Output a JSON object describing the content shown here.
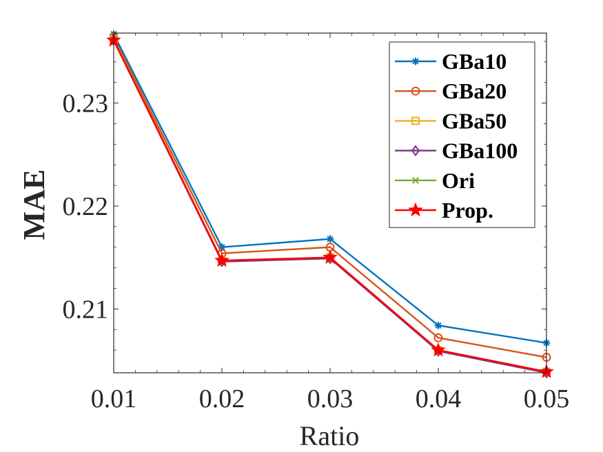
{
  "chart_data": {
    "type": "line",
    "xlabel": "Ratio",
    "ylabel": "MAE",
    "x": [
      0.01,
      0.02,
      0.03,
      0.04,
      0.05
    ],
    "x_tick_labels": [
      "0.01",
      "0.02",
      "0.03",
      "0.04",
      "0.05"
    ],
    "y_ticks": [
      0.21,
      0.22,
      0.23
    ],
    "y_tick_labels": [
      "0.21",
      "0.22",
      "0.23"
    ],
    "xlim": [
      0.01,
      0.05
    ],
    "ylim": [
      0.2038,
      0.2368
    ],
    "grid": false,
    "legend_position": "top-right",
    "series": [
      {
        "name": "GBa10",
        "color": "#0072BD",
        "marker": "asterisk",
        "values": [
          0.2367,
          0.216,
          0.2168,
          0.2084,
          0.2067
        ]
      },
      {
        "name": "GBa20",
        "color": "#D95319",
        "marker": "circle",
        "values": [
          0.2364,
          0.2154,
          0.216,
          0.2072,
          0.2053
        ]
      },
      {
        "name": "GBa50",
        "color": "#EDB120",
        "marker": "square",
        "values": [
          0.2362,
          0.2147,
          0.215,
          0.206,
          0.2039
        ]
      },
      {
        "name": "GBa100",
        "color": "#7E2F8E",
        "marker": "diamond",
        "values": [
          0.2361,
          0.2146,
          0.2149,
          0.2059,
          0.2038
        ]
      },
      {
        "name": "Ori",
        "color": "#77AC30",
        "marker": "x",
        "values": [
          0.2362,
          0.2147,
          0.215,
          0.206,
          0.2039
        ]
      },
      {
        "name": "Prop.",
        "color": "#FF0000",
        "marker": "star",
        "values": [
          0.2361,
          0.2147,
          0.215,
          0.206,
          0.2039
        ]
      }
    ]
  }
}
